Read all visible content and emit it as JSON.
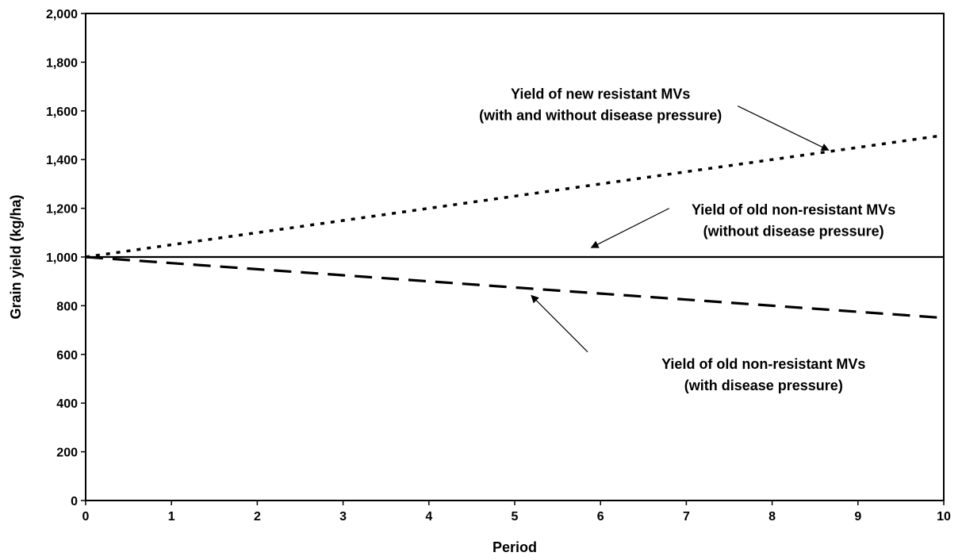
{
  "chart_data": {
    "type": "line",
    "title": "",
    "xlabel": "Period",
    "ylabel": "Grain yield (kg/ha)",
    "xlim": [
      0,
      10
    ],
    "ylim": [
      0,
      2000
    ],
    "x_ticks": [
      "0",
      "1",
      "2",
      "3",
      "4",
      "5",
      "6",
      "7",
      "8",
      "9",
      "10"
    ],
    "y_ticks": [
      "0",
      "200",
      "400",
      "600",
      "800",
      "1,000",
      "1,200",
      "1,400",
      "1,600",
      "1,800",
      "2,000"
    ],
    "grid": false,
    "legend": "none",
    "series": [
      {
        "style": "dotted",
        "x": [
          0,
          1,
          2,
          3,
          4,
          5,
          6,
          7,
          8,
          9,
          10
        ],
        "values": [
          1000,
          1050,
          1100,
          1150,
          1200,
          1250,
          1300,
          1350,
          1400,
          1450,
          1500
        ]
      },
      {
        "style": "solid",
        "x": [
          0,
          1,
          2,
          3,
          4,
          5,
          6,
          7,
          8,
          9,
          10
        ],
        "values": [
          1000,
          1000,
          1000,
          1000,
          1000,
          1000,
          1000,
          1000,
          1000,
          1000,
          1000
        ]
      },
      {
        "style": "dashed",
        "x": [
          0,
          1,
          2,
          3,
          4,
          5,
          6,
          7,
          8,
          9,
          10
        ],
        "values": [
          1000,
          975,
          950,
          925,
          900,
          875,
          850,
          825,
          800,
          775,
          750
        ]
      }
    ],
    "annotations": [
      {
        "lines": [
          "Yield of new resistant MVs",
          "(with and without disease pressure)"
        ],
        "arrow_to": {
          "x": 8.65,
          "y": 1440
        },
        "arrow_from": {
          "x": 7.6,
          "y": 1620
        },
        "text_at": {
          "x": 6.0,
          "y": 1650
        }
      },
      {
        "lines": [
          "Yield of old non-resistant MVs",
          "(without disease pressure)"
        ],
        "arrow_to": {
          "x": 5.9,
          "y": 1040
        },
        "arrow_from": {
          "x": 6.8,
          "y": 1200
        },
        "text_at": {
          "x": 8.25,
          "y": 1175
        }
      },
      {
        "lines": [
          "Yield of old non-resistant MVs",
          "(with disease pressure)"
        ],
        "arrow_to": {
          "x": 5.2,
          "y": 840
        },
        "arrow_from": {
          "x": 5.85,
          "y": 610
        },
        "text_at": {
          "x": 7.9,
          "y": 540
        }
      }
    ]
  }
}
